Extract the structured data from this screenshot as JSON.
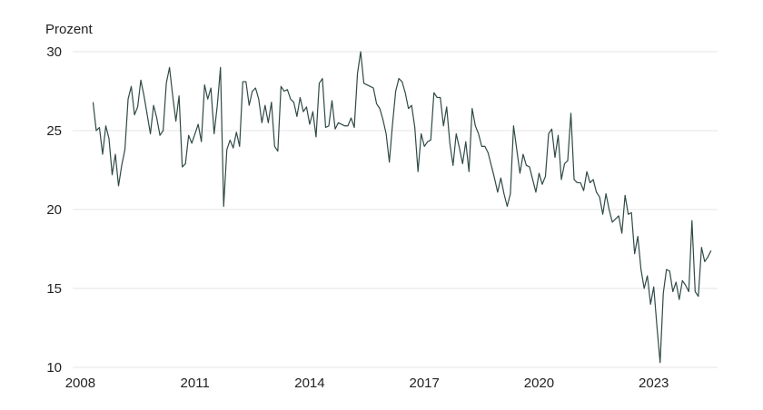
{
  "chart_data": {
    "type": "line",
    "unit_label": "Prozent",
    "x_ticks": [
      "2008",
      "2011",
      "2014",
      "2017",
      "2020",
      "2023"
    ],
    "y_ticks": [
      10,
      15,
      20,
      25,
      30
    ],
    "xlim": [
      2007.8,
      2024.67
    ],
    "ylim": [
      10,
      30
    ],
    "grid": "horizontal",
    "colors": {
      "line": "#2f4a46",
      "grid": "#e6e6e6",
      "text": "#222222"
    },
    "series": [
      {
        "x_start": "2008-05",
        "frequency": "monthly",
        "values": [
          26.8,
          25.0,
          25.2,
          23.5,
          25.3,
          24.5,
          22.2,
          23.5,
          21.5,
          22.8,
          23.8,
          27.0,
          27.8,
          26.0,
          26.5,
          28.2,
          27.2,
          26.0,
          24.8,
          26.6,
          25.8,
          24.7,
          25.0,
          28.0,
          29.0,
          27.2,
          25.6,
          27.2,
          22.7,
          22.9,
          24.7,
          24.2,
          24.8,
          25.4,
          24.3,
          27.9,
          27.0,
          27.7,
          24.8,
          26.6,
          29.0,
          20.2,
          23.8,
          24.4,
          23.9,
          24.9,
          24.0,
          28.1,
          28.1,
          26.6,
          27.5,
          27.7,
          27.0,
          25.5,
          26.6,
          25.5,
          26.8,
          24.0,
          23.7,
          27.8,
          27.5,
          27.6,
          27.0,
          26.8,
          25.9,
          27.1,
          26.2,
          26.5,
          25.4,
          26.2,
          24.6,
          28.0,
          28.3,
          25.2,
          25.3,
          26.9,
          25.1,
          25.5,
          25.4,
          25.3,
          25.3,
          25.8,
          25.2,
          28.6,
          30.0,
          28.0,
          27.9,
          27.8,
          27.7,
          26.7,
          26.4,
          25.7,
          24.8,
          23.0,
          25.4,
          27.5,
          28.3,
          28.1,
          27.4,
          26.4,
          26.6,
          25.2,
          22.4,
          24.8,
          24.0,
          24.3,
          24.4,
          27.4,
          27.1,
          27.1,
          25.3,
          26.5,
          24.2,
          22.8,
          24.8,
          23.9,
          22.9,
          24.3,
          22.4,
          26.4,
          25.3,
          24.8,
          24.0,
          24.0,
          23.6,
          22.8,
          22.0,
          21.1,
          22.0,
          21.0,
          20.2,
          21.0,
          25.3,
          23.8,
          22.3,
          23.5,
          22.8,
          22.7,
          21.9,
          21.1,
          22.3,
          21.6,
          22.1,
          24.8,
          25.1,
          23.3,
          24.7,
          21.9,
          22.9,
          23.1,
          26.1,
          21.9,
          21.7,
          21.7,
          21.2,
          22.4,
          21.7,
          21.9,
          21.1,
          20.8,
          19.7,
          21.0,
          20.0,
          19.2,
          19.4,
          19.6,
          18.5,
          20.9,
          19.7,
          19.8,
          17.2,
          18.3,
          16.2,
          15.0,
          15.8,
          14.0,
          15.1,
          12.6,
          10.3,
          14.7,
          16.2,
          16.1,
          14.8,
          15.4,
          14.3,
          15.5,
          15.2,
          14.8,
          19.3,
          14.8,
          14.5,
          17.6,
          16.7,
          17.0,
          17.4
        ]
      }
    ]
  }
}
